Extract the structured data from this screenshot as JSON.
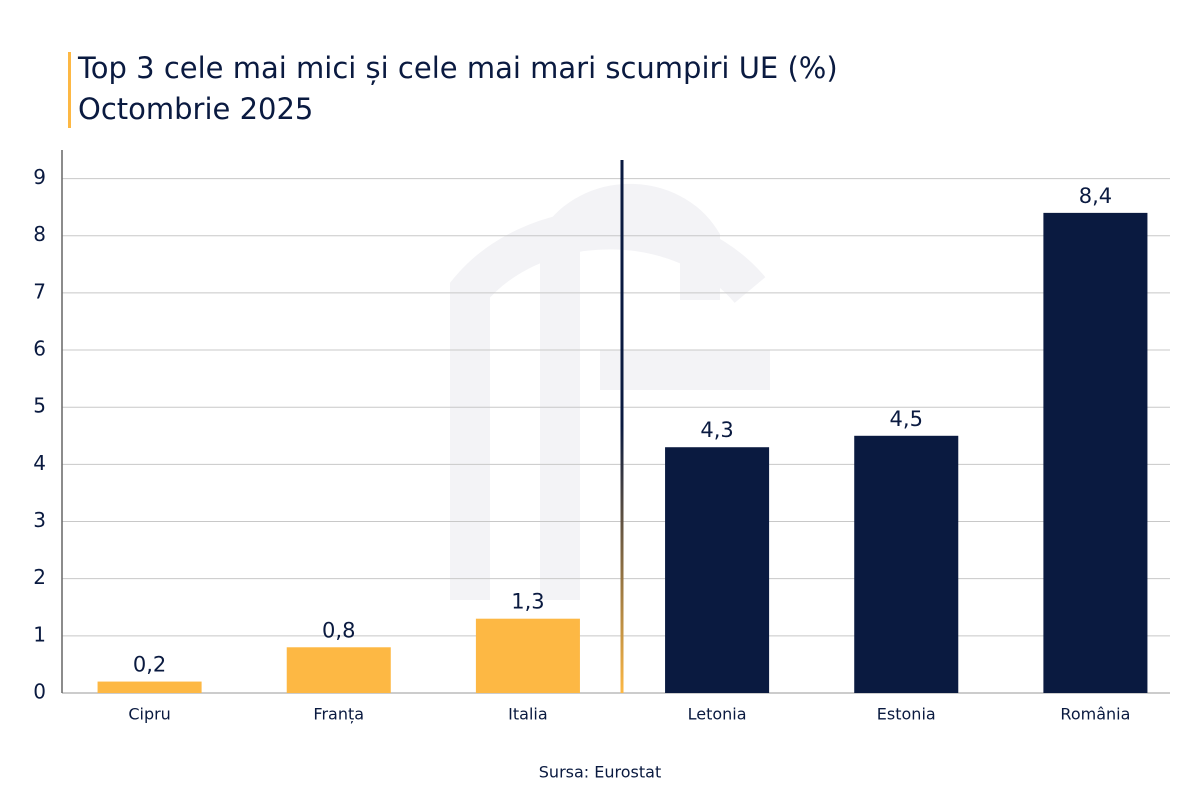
{
  "chart_data": {
    "type": "bar",
    "title": "Top 3 cele mai mici și cele mai mari scumpiri UE (%)",
    "subtitle": "Octombrie 2025",
    "categories": [
      "Cipru",
      "Franța",
      "Italia",
      "Letonia",
      "Estonia",
      "România"
    ],
    "values": [
      0.2,
      0.8,
      1.3,
      4.3,
      4.5,
      8.4
    ],
    "value_labels": [
      "0,2",
      "0,8",
      "1,3",
      "4,3",
      "4,5",
      "8,4"
    ],
    "colors": [
      "#fdb844",
      "#fdb844",
      "#fdb844",
      "#0a1a40",
      "#0a1a40",
      "#0a1a40"
    ],
    "ylim": [
      0,
      9.5
    ],
    "yticks": [
      0,
      1,
      2,
      3,
      4,
      5,
      6,
      7,
      8,
      9
    ],
    "grid": true,
    "source": "Sursa: Eurostat"
  }
}
